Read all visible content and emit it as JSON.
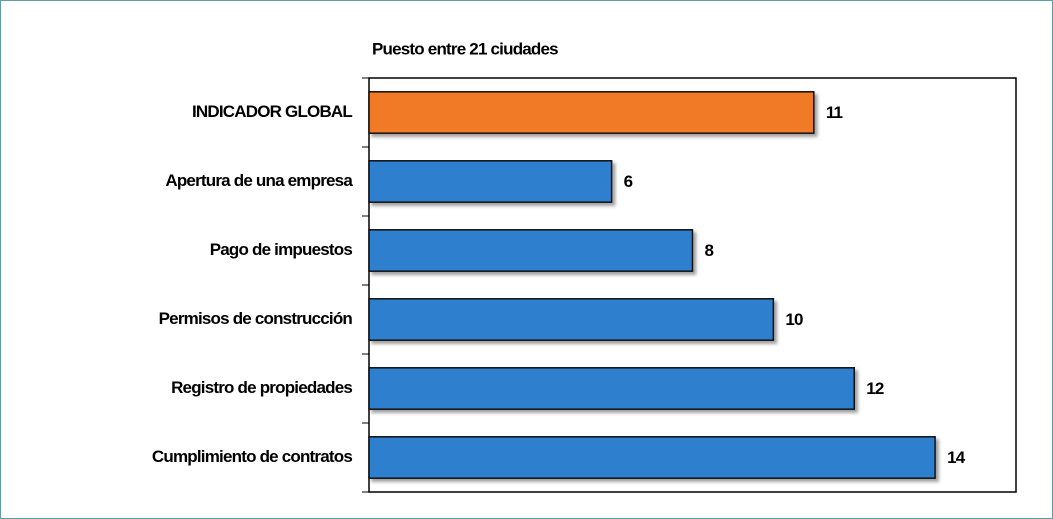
{
  "chart_data": {
    "type": "barh",
    "title": "Puesto entre 21 ciudades",
    "categories": [
      "INDICADOR GLOBAL",
      "Apertura de una empresa",
      "Pago de impuestos",
      "Permisos de construcción",
      "Registro de propiedades",
      "Cumplimiento de contratos"
    ],
    "values": [
      11,
      6,
      8,
      10,
      12,
      14
    ],
    "colors": [
      "#f07a26",
      "#2e80cf",
      "#2e80cf",
      "#2e80cf",
      "#2e80cf",
      "#2e80cf"
    ],
    "xlim": [
      0,
      16
    ]
  }
}
